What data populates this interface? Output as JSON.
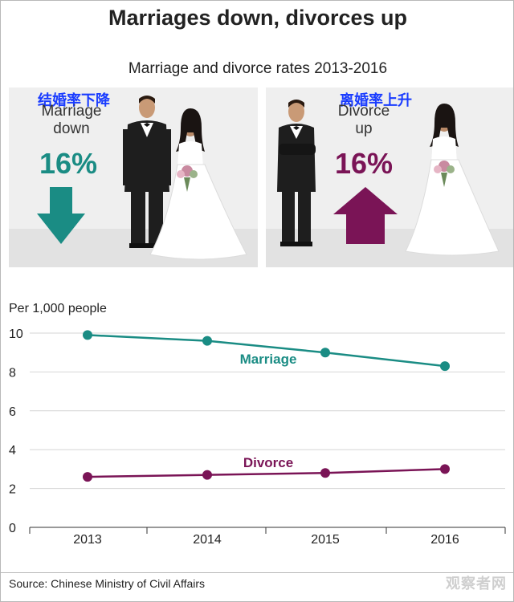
{
  "title": "Marriages down, divorces up",
  "subtitle": "Marriage and divorce rates 2013-2016",
  "panels": {
    "marriage": {
      "cn_label": "结婚率下降",
      "label_line1": "Marriage",
      "label_line2": "down",
      "percent": "16%",
      "color": "#1a8c84",
      "direction": "down"
    },
    "divorce": {
      "cn_label": "离婚率上升",
      "label_line1": "Divorce",
      "label_line2": "up",
      "percent": "16%",
      "color": "#7a1456",
      "direction": "up"
    }
  },
  "chart_data": {
    "type": "line",
    "ylabel": "Per 1,000 people",
    "xlabel": "",
    "x": [
      "2013",
      "2014",
      "2015",
      "2016"
    ],
    "yticks": [
      "0",
      "2",
      "4",
      "6",
      "8",
      "10"
    ],
    "ylim": [
      0,
      10
    ],
    "grid": true,
    "series": [
      {
        "name": "Marriage",
        "values": [
          9.9,
          9.6,
          9.0,
          8.3
        ],
        "color": "#1a8c84"
      },
      {
        "name": "Divorce",
        "values": [
          2.6,
          2.7,
          2.8,
          3.0
        ],
        "color": "#7a1456"
      }
    ]
  },
  "source": "Source: Chinese Ministry of Civil Affairs",
  "watermark": "观察者网"
}
